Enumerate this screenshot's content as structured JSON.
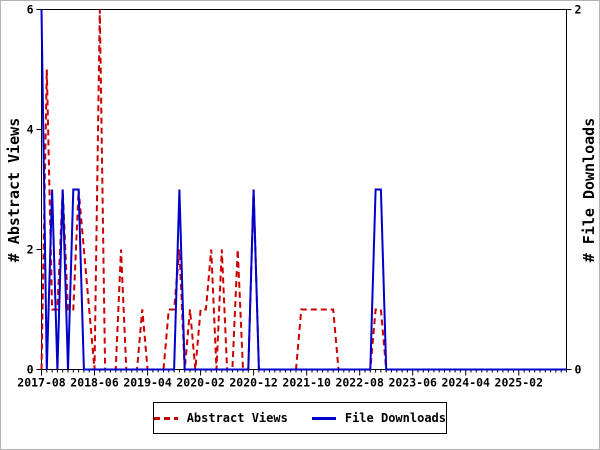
{
  "figure": {
    "left_axis_title": "# Abstract Views",
    "right_axis_title": "# File Downloads"
  },
  "legend": {
    "items": [
      {
        "label": "Abstract Views",
        "color": "#cc0000",
        "style": "dashed"
      },
      {
        "label": "File Downloads",
        "color": "#0000cc",
        "style": "solid"
      }
    ]
  },
  "chart_data": {
    "type": "line",
    "x_start": "2017-08",
    "x_end": "2025-11",
    "x_monthly_points": 100,
    "x_tick_every_months": 10,
    "x_tick_labels": [
      "2017-08",
      "2018-06",
      "2019-04",
      "2020-02",
      "2020-12",
      "2021-10",
      "2022-08",
      "2023-06",
      "2024-04",
      "2025-02"
    ],
    "left_axis": {
      "label": "# Abstract Views",
      "min": 0,
      "max": 6,
      "ticks": [
        0,
        2,
        4,
        6
      ]
    },
    "right_axis": {
      "label": "# File Downloads",
      "min": 0,
      "max": 2,
      "ticks": [
        0,
        2
      ]
    },
    "grid": false,
    "legend_position": "bottom-center",
    "series": [
      {
        "name": "Abstract Views",
        "axis": "left",
        "color": "#cc0000",
        "style": "dashed",
        "values": [
          0,
          5,
          1,
          1,
          3,
          1,
          1,
          3,
          2,
          1,
          0,
          6,
          0,
          0,
          0,
          2,
          0,
          0,
          0,
          1,
          0,
          0,
          0,
          0,
          1,
          1,
          2,
          0,
          1,
          0,
          1,
          1,
          2,
          0,
          2,
          0,
          0,
          2,
          0,
          0,
          3,
          0,
          0,
          0,
          0,
          0,
          0,
          0,
          0,
          1,
          1,
          1,
          1,
          1,
          1,
          1,
          0,
          0,
          0,
          0,
          0,
          0,
          0,
          1,
          1,
          0,
          0,
          0,
          0,
          0,
          0,
          0,
          0,
          0,
          0,
          0,
          0,
          0,
          0,
          0,
          0,
          0,
          0,
          0,
          0,
          0,
          0,
          0,
          0,
          0,
          0,
          0,
          0,
          0,
          0,
          0,
          0,
          0,
          0,
          0
        ]
      },
      {
        "name": "File Downloads",
        "axis": "right",
        "color": "#0000cc",
        "style": "solid",
        "values": [
          2,
          0,
          1,
          0,
          1,
          0,
          1,
          1,
          0,
          0,
          0,
          0,
          0,
          0,
          0,
          0,
          0,
          0,
          0,
          0,
          0,
          0,
          0,
          0,
          0,
          0,
          1,
          0,
          0,
          0,
          0,
          0,
          0,
          0,
          0,
          0,
          0,
          0,
          0,
          0,
          1,
          0,
          0,
          0,
          0,
          0,
          0,
          0,
          0,
          0,
          0,
          0,
          0,
          0,
          0,
          0,
          0,
          0,
          0,
          0,
          0,
          0,
          0,
          1,
          1,
          0,
          0,
          0,
          0,
          0,
          0,
          0,
          0,
          0,
          0,
          0,
          0,
          0,
          0,
          0,
          0,
          0,
          0,
          0,
          0,
          0,
          0,
          0,
          0,
          0,
          0,
          0,
          0,
          0,
          0,
          0,
          0,
          0,
          0,
          0
        ]
      }
    ]
  }
}
